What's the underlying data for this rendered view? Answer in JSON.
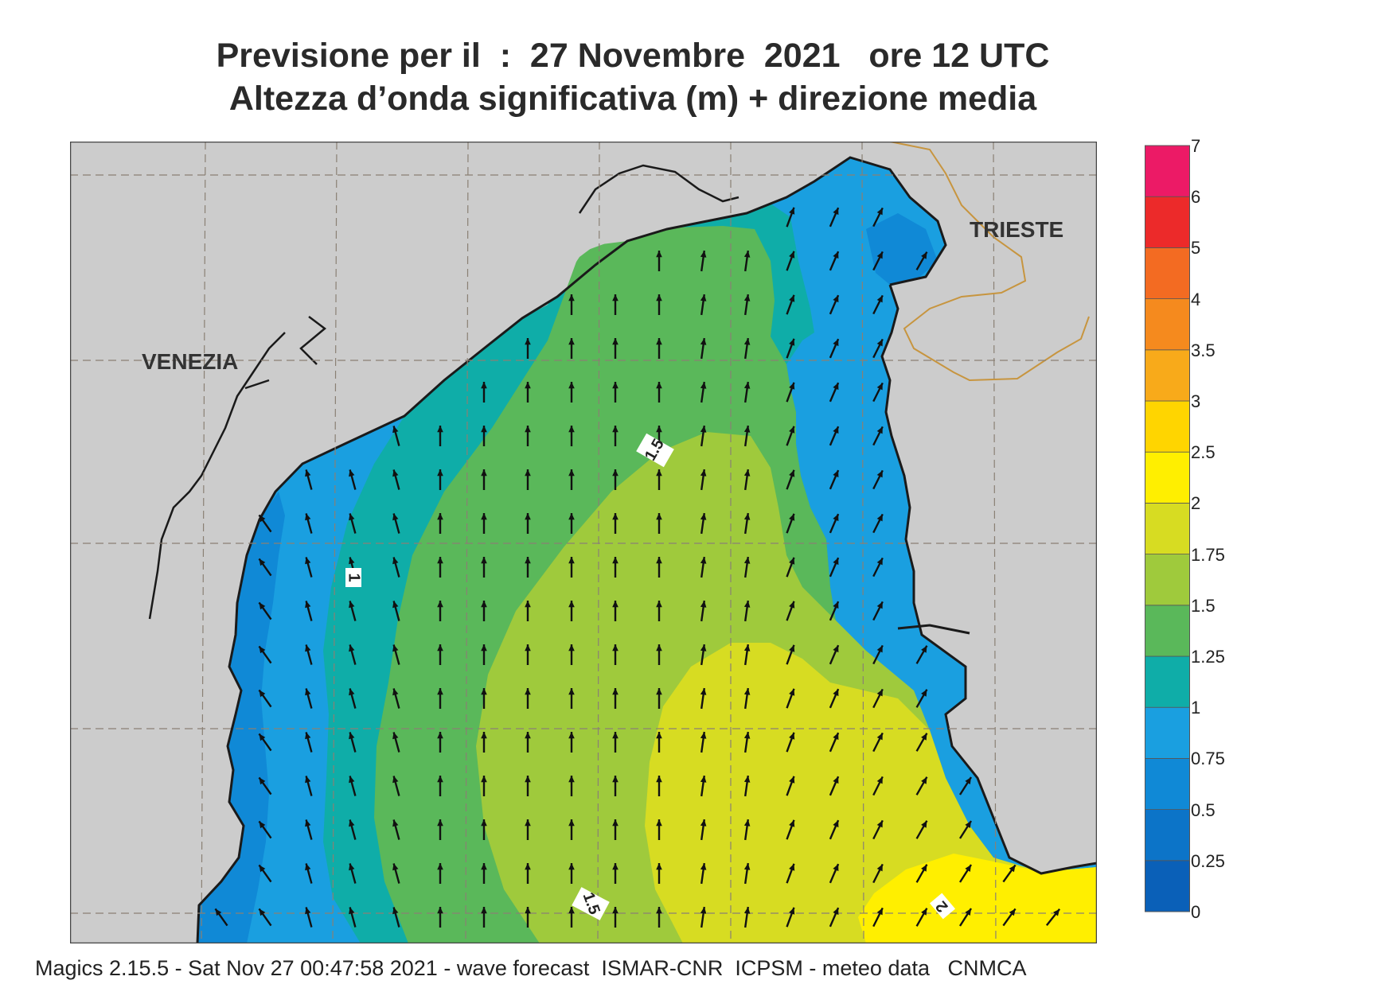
{
  "title_line1": "Previsione per il  :  27 Novembre  2021   ore 12 UTC",
  "title_line2": "Altezza d’onda significativa (m) + direzione media",
  "cities": {
    "venezia": "VENEZIA",
    "trieste": "TRIESTE"
  },
  "contour_labels": {
    "c1": "1",
    "c15a": "1.5",
    "c15b": "1.5",
    "c2": "2"
  },
  "colorbar": {
    "levels": [
      "0",
      "0.25",
      "0.5",
      "0.75",
      "1",
      "1.25",
      "1.5",
      "1.75",
      "2",
      "2.5",
      "3",
      "3.5",
      "4",
      "5",
      "6",
      "7"
    ],
    "colors": [
      "#0a60b8",
      "#0c74c8",
      "#1089d6",
      "#1a9fe0",
      "#0fada8",
      "#5ab85a",
      "#9fca3c",
      "#d7dc22",
      "#ffef00",
      "#ffd500",
      "#f8aa1a",
      "#f58a1e",
      "#f36b22",
      "#ec2a2a",
      "#ec1a66"
    ]
  },
  "footer": "Magics 2.15.5 - Sat Nov 27 00:47:58 2021 - wave forecast  ISMAR-CNR  ICPSM - meteo data   CNMCA",
  "colors": {
    "land": "#cccccc",
    "coast": "#1a1a1a",
    "border": "#c7953f",
    "grid": "#9a8a7a"
  }
}
